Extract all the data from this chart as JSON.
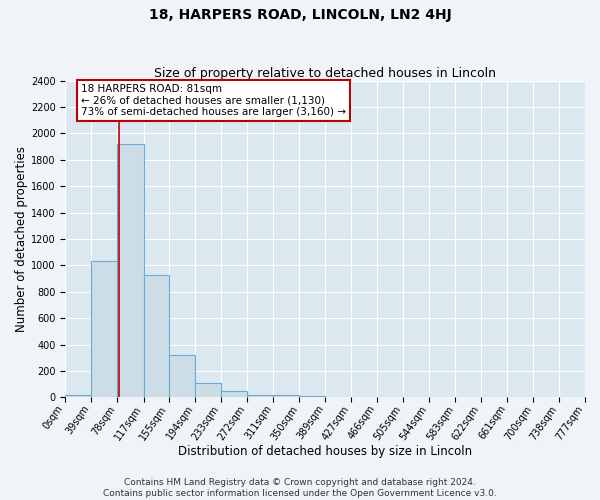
{
  "title": "18, HARPERS ROAD, LINCOLN, LN2 4HJ",
  "subtitle": "Size of property relative to detached houses in Lincoln",
  "xlabel": "Distribution of detached houses by size in Lincoln",
  "ylabel": "Number of detached properties",
  "bar_edges": [
    0,
    39,
    78,
    117,
    155,
    194,
    233,
    272,
    311,
    350,
    389,
    427,
    466,
    505,
    544,
    583,
    622,
    661,
    700,
    738,
    777
  ],
  "bar_heights": [
    20,
    1030,
    1920,
    930,
    320,
    110,
    50,
    20,
    20,
    10,
    5,
    0,
    0,
    0,
    0,
    0,
    0,
    0,
    0,
    0
  ],
  "tick_labels": [
    "0sqm",
    "39sqm",
    "78sqm",
    "117sqm",
    "155sqm",
    "194sqm",
    "233sqm",
    "272sqm",
    "311sqm",
    "350sqm",
    "389sqm",
    "427sqm",
    "466sqm",
    "505sqm",
    "544sqm",
    "583sqm",
    "622sqm",
    "661sqm",
    "700sqm",
    "738sqm",
    "777sqm"
  ],
  "bar_color": "#ccdde8",
  "bar_edge_color": "#6aaad4",
  "property_line_x": 81,
  "property_line_color": "#c00000",
  "ylim": [
    0,
    2400
  ],
  "yticks": [
    0,
    200,
    400,
    600,
    800,
    1000,
    1200,
    1400,
    1600,
    1800,
    2000,
    2200,
    2400
  ],
  "annotation_title": "18 HARPERS ROAD: 81sqm",
  "annotation_line1": "← 26% of detached houses are smaller (1,130)",
  "annotation_line2": "73% of semi-detached houses are larger (3,160) →",
  "annotation_box_color": "#ffffff",
  "annotation_box_edge": "#c00000",
  "footer_line1": "Contains HM Land Registry data © Crown copyright and database right 2024.",
  "footer_line2": "Contains public sector information licensed under the Open Government Licence v3.0.",
  "fig_bg_color": "#f0f4f8",
  "plot_bg_color": "#dce8f0",
  "grid_color": "#ffffff",
  "title_fontsize": 10,
  "subtitle_fontsize": 9,
  "axis_label_fontsize": 8.5,
  "tick_fontsize": 7,
  "footer_fontsize": 6.5,
  "annotation_fontsize": 7.5
}
